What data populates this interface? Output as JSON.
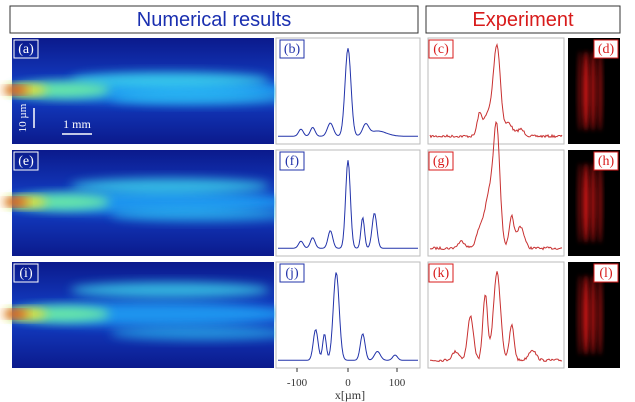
{
  "headers": {
    "numerical": "Numerical results",
    "experiment": "Experiment"
  },
  "panels": [
    "(a)",
    "(b)",
    "(c)",
    "(d)",
    "(e)",
    "(f)",
    "(g)",
    "(h)",
    "(i)",
    "(j)",
    "(k)",
    "(l)"
  ],
  "scale_bars": {
    "vertical": "10 µm",
    "horizontal": "1 mm"
  },
  "x_axis": {
    "ticks": [
      "-100",
      "0",
      "100"
    ],
    "label": "x[µm]"
  }
}
